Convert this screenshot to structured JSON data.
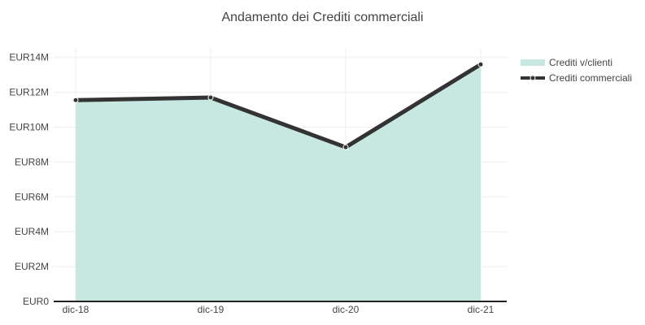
{
  "chart_data": {
    "type": "area",
    "title": "Andamento dei Crediti commerciali",
    "xlabel": "",
    "ylabel": "",
    "categories": [
      "dic-18",
      "dic-19",
      "dic-20",
      "dic-21"
    ],
    "ylim": [
      0,
      14500000
    ],
    "y_ticks": [
      0,
      2000000,
      4000000,
      6000000,
      8000000,
      10000000,
      12000000,
      14000000
    ],
    "y_tick_labels": [
      "EUR0",
      "EUR2M",
      "EUR4M",
      "EUR6M",
      "EUR8M",
      "EUR10M",
      "EUR12M",
      "EUR14M"
    ],
    "grid": true,
    "legend_position": "top-right",
    "series": [
      {
        "name": "Crediti v/clienti",
        "kind": "area",
        "color": "#c6e8e1",
        "values": [
          11550000,
          11700000,
          8850000,
          13600000
        ]
      },
      {
        "name": "Crediti commerciali",
        "kind": "line",
        "color": "#333333",
        "values": [
          11550000,
          11700000,
          8850000,
          13600000
        ]
      }
    ]
  }
}
